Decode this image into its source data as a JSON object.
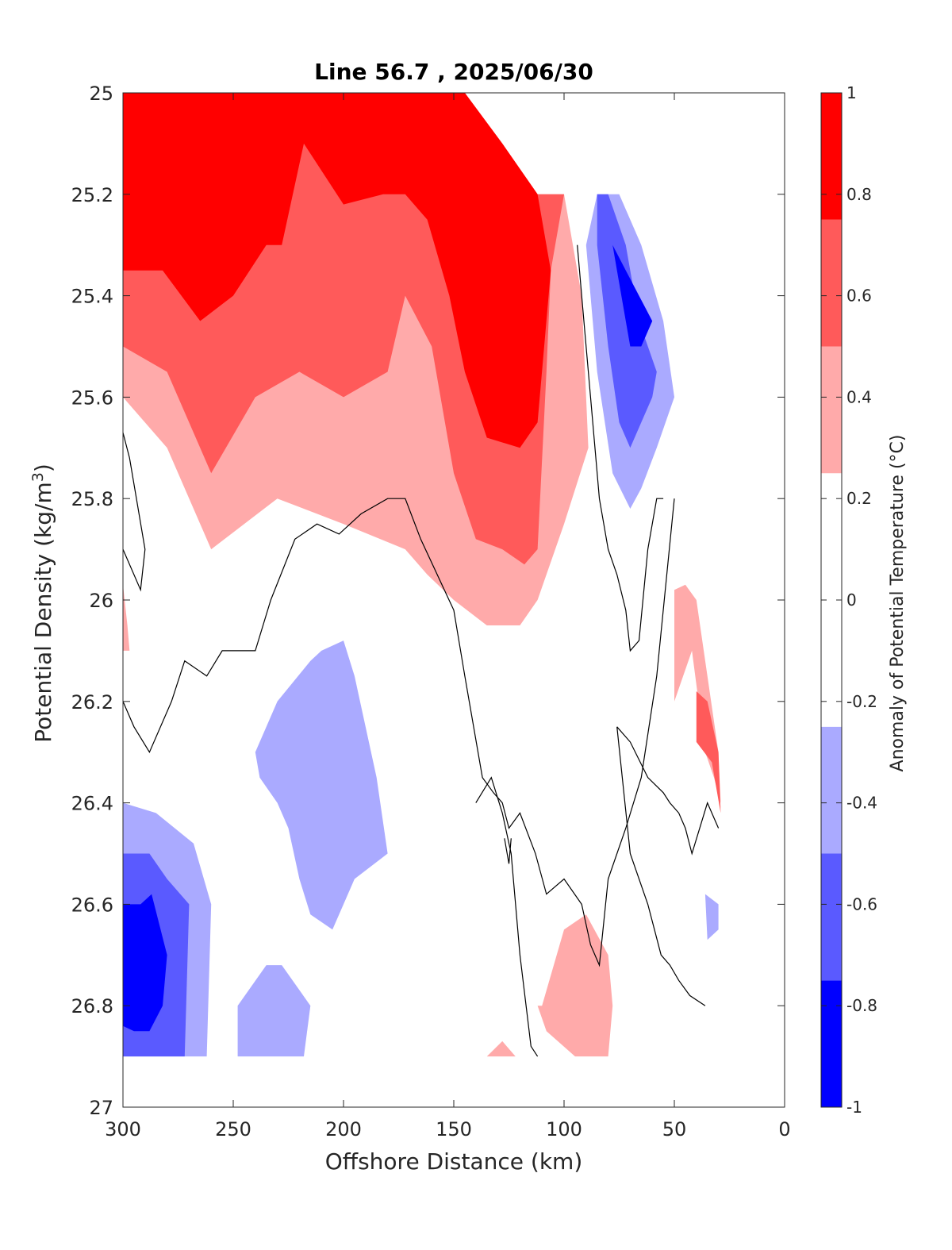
{
  "chart_data": {
    "type": "contour",
    "title": "Line 56.7 , 2025/06/30",
    "xlabel": "Offshore Distance (km)",
    "ylabel_main": "Potential Density (kg/m",
    "ylabel_sup": "3",
    "ylabel_close": ")",
    "colorbar_label": "Anomaly of Potential Temperature (°C)",
    "xlim": [
      300,
      0
    ],
    "ylim": [
      25,
      27
    ],
    "x_reversed": true,
    "y_reversed": true,
    "xticks": [
      300,
      250,
      200,
      150,
      100,
      50,
      0
    ],
    "xtick_labels": [
      "300",
      "250",
      "200",
      "150",
      "100",
      "50",
      "0"
    ],
    "yticks": [
      25,
      25.2,
      25.4,
      25.6,
      25.8,
      26,
      26.2,
      26.4,
      26.6,
      26.8,
      27
    ],
    "ytick_labels": [
      "25",
      "25.2",
      "25.4",
      "25.6",
      "25.8",
      "26",
      "26.2",
      "26.4",
      "26.6",
      "26.8",
      "27"
    ],
    "colorbar": {
      "range": [
        -1,
        1
      ],
      "ticks": [
        -1,
        -0.8,
        -0.6,
        -0.4,
        -0.2,
        0,
        0.2,
        0.4,
        0.6,
        0.8,
        1
      ],
      "tick_labels": [
        "-1",
        "-0.8",
        "-0.6",
        "-0.4",
        "-0.2",
        "0",
        "0.2",
        "0.4",
        "0.6",
        "0.8",
        "1"
      ],
      "bands": [
        {
          "from": -1,
          "to": -0.75,
          "color": "#0000ff"
        },
        {
          "from": -0.75,
          "to": -0.5,
          "color": "#5a5aff"
        },
        {
          "from": -0.5,
          "to": -0.25,
          "color": "#aaaaff"
        },
        {
          "from": -0.25,
          "to": 0.25,
          "color": "#ffffff"
        },
        {
          "from": 0.25,
          "to": 0.5,
          "color": "#ffaaaa"
        },
        {
          "from": 0.5,
          "to": 0.75,
          "color": "#ff5a5a"
        },
        {
          "from": 0.75,
          "to": 1,
          "color": "#ff0000"
        }
      ]
    },
    "contour_levels": [
      -0.75,
      -0.5,
      -0.25,
      0,
      0.25,
      0.5,
      0.75
    ],
    "zero_contour_color": "#000000",
    "data_extent": {
      "x_min": 30,
      "x_max": 300,
      "y_min": 25,
      "y_max": 26.9
    },
    "regions": [
      {
        "name": "pink-main",
        "level": 0.25,
        "color": "#ffaaaa",
        "x": [
          300,
          280,
          260,
          245,
          230,
          215,
          200,
          185,
          172,
          160,
          145,
          128,
          112,
          100,
          92,
          89,
          100,
          112,
          120,
          135,
          150,
          162,
          172,
          200,
          230,
          260,
          280,
          300
        ],
        "y": [
          25,
          25,
          25,
          25,
          25,
          25,
          25,
          25,
          25,
          25,
          25,
          25.1,
          25.2,
          25.2,
          25.4,
          25.7,
          25.85,
          26,
          26.05,
          26.05,
          26.0,
          25.95,
          25.9,
          25.85,
          25.8,
          25.9,
          25.7,
          25.6
        ]
      },
      {
        "name": "pink-left-sliver",
        "level": 0.25,
        "color": "#ffaaaa",
        "x": [
          300,
          298,
          297,
          300
        ],
        "y": [
          25.97,
          26.05,
          26.1,
          26.1
        ]
      },
      {
        "name": "red-main",
        "level": 0.5,
        "color": "#ff5a5a",
        "x": [
          300,
          280,
          260,
          245,
          230,
          215,
          200,
          185,
          172,
          160,
          145,
          128,
          112,
          100,
          106,
          108,
          112,
          118,
          128,
          140,
          150,
          160,
          172,
          180,
          200,
          220,
          240,
          260,
          280,
          300
        ],
        "y": [
          25,
          25,
          25,
          25,
          25,
          25,
          25,
          25,
          25,
          25,
          25,
          25.1,
          25.2,
          25.2,
          25.35,
          25.55,
          25.9,
          25.93,
          25.9,
          25.88,
          25.75,
          25.5,
          25.4,
          25.55,
          25.6,
          25.55,
          25.6,
          25.75,
          25.55,
          25.5
        ]
      },
      {
        "name": "red-dark-main",
        "level": 0.75,
        "color": "#ff0000",
        "x": [
          300,
          280,
          260,
          245,
          230,
          215,
          200,
          185,
          172,
          160,
          145,
          128,
          112,
          106,
          112,
          120,
          135,
          145,
          152,
          162,
          172,
          182,
          200,
          218,
          228,
          235,
          250,
          265,
          282,
          300
        ],
        "y": [
          25,
          25,
          25,
          25,
          25,
          25,
          25,
          25,
          25,
          25,
          25,
          25.1,
          25.2,
          25.35,
          25.65,
          25.7,
          25.68,
          25.55,
          25.4,
          25.25,
          25.2,
          25.2,
          25.22,
          25.1,
          25.3,
          25.3,
          25.4,
          25.45,
          25.35,
          25.35
        ]
      },
      {
        "name": "pink-right",
        "level": 0.25,
        "color": "#ffaaaa",
        "x": [
          50,
          45,
          40,
          30,
          29,
          32,
          36,
          42,
          50
        ],
        "y": [
          25.98,
          25.97,
          26.0,
          26.3,
          26.4,
          26.35,
          26.3,
          26.1,
          26.2
        ]
      },
      {
        "name": "red-right",
        "level": 0.5,
        "color": "#ff5a5a",
        "x": [
          40,
          35,
          30,
          29,
          33,
          40
        ],
        "y": [
          26.18,
          26.2,
          26.3,
          26.42,
          26.32,
          26.28
        ]
      },
      {
        "name": "pink-bottom-right",
        "level": 0.25,
        "color": "#ffaaaa",
        "x": [
          110,
          100,
          90,
          80,
          78,
          80,
          86,
          95,
          108,
          112
        ],
        "y": [
          26.8,
          26.65,
          26.62,
          26.7,
          26.8,
          26.9,
          26.9,
          26.9,
          26.85,
          26.8
        ]
      },
      {
        "name": "pink-bottom-small",
        "level": 0.25,
        "color": "#ffaaaa",
        "x": [
          135,
          128,
          122,
          135
        ],
        "y": [
          26.9,
          26.87,
          26.9,
          26.9
        ]
      },
      {
        "name": "blue-light-top-right",
        "level": -0.25,
        "color": "#aaaaff",
        "x": [
          90,
          85,
          75,
          65,
          55,
          50,
          58,
          65,
          70,
          78,
          85,
          90
        ],
        "y": [
          25.3,
          25.2,
          25.2,
          25.3,
          25.45,
          25.6,
          25.7,
          25.78,
          25.82,
          25.75,
          25.55,
          25.3
        ]
      },
      {
        "name": "blue-mid-top-right",
        "level": -0.5,
        "color": "#5a5aff",
        "x": [
          85,
          80,
          72,
          66,
          58,
          60,
          65,
          70,
          75,
          80,
          85
        ],
        "y": [
          25.2,
          25.2,
          25.3,
          25.45,
          25.55,
          25.6,
          25.65,
          25.7,
          25.65,
          25.5,
          25.3
        ]
      },
      {
        "name": "blue-dark-top-right",
        "level": -0.75,
        "color": "#0000ff",
        "x": [
          78,
          72,
          66,
          60,
          65,
          70,
          72,
          76,
          78
        ],
        "y": [
          25.3,
          25.35,
          25.4,
          25.45,
          25.5,
          25.5,
          25.45,
          25.35,
          25.3
        ]
      },
      {
        "name": "blue-light-center",
        "level": -0.25,
        "color": "#aaaaff",
        "x": [
          210,
          200,
          195,
          190,
          185,
          180,
          195,
          205,
          215,
          220,
          225,
          230,
          238,
          240,
          230,
          215
        ],
        "y": [
          26.1,
          26.08,
          26.15,
          26.25,
          26.35,
          26.5,
          26.55,
          26.65,
          26.62,
          26.55,
          26.45,
          26.4,
          26.35,
          26.3,
          26.2,
          26.12
        ]
      },
      {
        "name": "blue-light-bottom-left",
        "level": -0.25,
        "color": "#aaaaff",
        "x": [
          300,
          285,
          268,
          260,
          262,
          275,
          300
        ],
        "y": [
          26.4,
          26.42,
          26.48,
          26.6,
          26.9,
          26.9,
          26.9
        ]
      },
      {
        "name": "blue-mid-bottom-left",
        "level": -0.5,
        "color": "#5a5aff",
        "x": [
          300,
          288,
          280,
          270,
          272,
          282,
          300
        ],
        "y": [
          26.5,
          26.5,
          26.55,
          26.6,
          26.9,
          26.9,
          26.9
        ]
      },
      {
        "name": "blue-dark-bottom-left",
        "level": -0.75,
        "color": "#0000ff",
        "x": [
          300,
          292,
          287,
          280,
          282,
          288,
          295,
          300
        ],
        "y": [
          26.6,
          26.6,
          26.58,
          26.7,
          26.8,
          26.85,
          26.85,
          26.84
        ]
      },
      {
        "name": "blue-light-bottom",
        "level": -0.25,
        "color": "#aaaaff",
        "x": [
          248,
          235,
          228,
          215,
          218,
          245,
          248
        ],
        "y": [
          26.8,
          26.72,
          26.72,
          26.8,
          26.9,
          26.9,
          26.9
        ]
      },
      {
        "name": "blue-light-small-right",
        "level": -0.25,
        "color": "#aaaaff",
        "x": [
          36,
          30,
          30,
          35
        ],
        "y": [
          26.58,
          26.6,
          26.65,
          26.67
        ]
      }
    ],
    "zero_contours": [
      {
        "x": [
          300,
          297,
          290,
          292,
          300
        ],
        "y": [
          25.67,
          25.72,
          25.9,
          25.98,
          25.9
        ]
      },
      {
        "x": [
          300,
          295,
          288,
          278,
          272,
          262,
          255,
          240,
          233,
          222,
          212,
          202,
          192,
          180,
          172,
          165,
          150,
          145,
          137,
          132,
          128,
          125,
          120,
          113,
          108,
          100,
          92,
          88,
          84,
          80,
          72,
          65,
          58,
          50
        ],
        "y": [
          26.2,
          26.25,
          26.3,
          26.2,
          26.12,
          26.15,
          26.1,
          26.1,
          26.0,
          25.88,
          25.85,
          25.87,
          25.83,
          25.8,
          25.8,
          25.88,
          26.02,
          26.15,
          26.35,
          26.38,
          26.4,
          26.45,
          26.42,
          26.5,
          26.58,
          26.55,
          26.6,
          26.68,
          26.72,
          26.55,
          26.45,
          26.35,
          26.15,
          25.8
        ]
      },
      {
        "x": [
          140,
          133,
          128,
          124,
          120,
          115,
          112
        ],
        "y": [
          26.4,
          26.35,
          26.42,
          26.5,
          26.7,
          26.88,
          26.9
        ]
      },
      {
        "x": [
          127,
          125,
          124
        ],
        "y": [
          26.47,
          26.52,
          26.47
        ]
      },
      {
        "x": [
          94,
          92,
          88,
          84,
          80,
          76,
          72,
          70,
          66,
          62,
          58,
          55
        ],
        "y": [
          25.3,
          25.4,
          25.6,
          25.8,
          25.9,
          25.95,
          26.02,
          26.1,
          26.08,
          25.9,
          25.8,
          25.8
        ]
      },
      {
        "x": [
          76,
          70,
          62,
          55,
          52,
          48,
          45,
          42,
          35,
          30
        ],
        "y": [
          26.25,
          26.28,
          26.35,
          26.38,
          26.4,
          26.42,
          26.45,
          26.5,
          26.4,
          26.45
        ]
      },
      {
        "x": [
          76,
          70,
          62,
          56,
          52,
          48,
          43,
          36
        ],
        "y": [
          26.25,
          26.5,
          26.6,
          26.7,
          26.72,
          26.75,
          26.78,
          26.8
        ]
      }
    ]
  }
}
